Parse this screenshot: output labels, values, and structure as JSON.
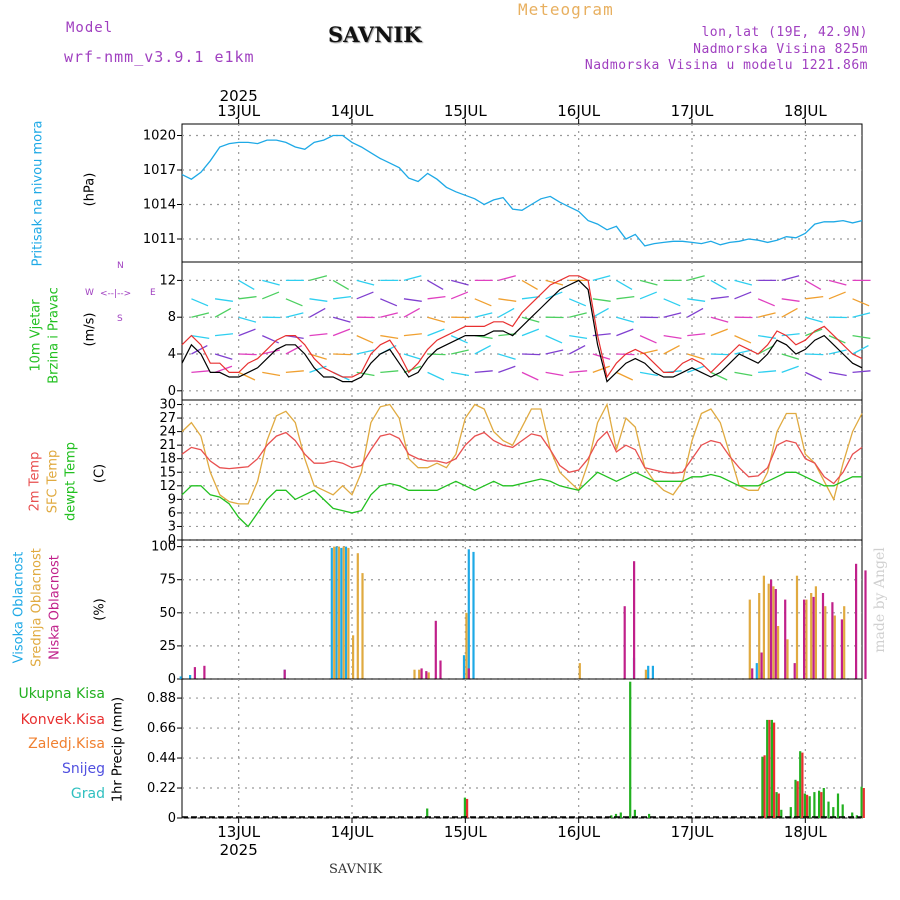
{
  "header": {
    "model_label": "Model",
    "model_name": "wrf-nmm_v3.9.1 e1km",
    "title": "SAVNIK",
    "product": "Meteogram",
    "lonlat": "lon,lat (19E, 42.9N)",
    "altitude": "Nadmorska Visina 825m",
    "model_altitude": "Nadmorska Visina u modelu 1221.86m",
    "footer": "SAVNIK",
    "watermark": "made by Angel"
  },
  "colors": {
    "pressure": "#1ea9e6",
    "wind_black": "#000000",
    "wind_red": "#e83030",
    "temp2m": "#e85050",
    "sfc": "#e0aa40",
    "dew": "#22c020",
    "cloud_high": "#1ea9e6",
    "cloud_mid": "#e0aa40",
    "cloud_low": "#c0208a",
    "rain_total": "#22b020",
    "rain_conv": "#e83030",
    "frozen": "#f08030",
    "snow": "#5050e0",
    "hail": "#30c0c0",
    "title_purple": "#a040c0",
    "title_orange": "#e8b060"
  },
  "chart_data": {
    "time_axis": {
      "year": "2025",
      "dates": [
        "13JUL",
        "14JUL",
        "15JUL",
        "16JUL",
        "17JUL",
        "18JUL"
      ],
      "start_hour": -12,
      "end_hour": 132
    },
    "panels": [
      {
        "id": "pressure",
        "type": "line",
        "labels": [
          "Pritisak na nivou mora"
        ],
        "unit": "(hPa)",
        "yticks": [
          "1011",
          "1014",
          "1017",
          "1020"
        ],
        "ylim": [
          1009,
          1021
        ],
        "x": [
          -12,
          -10,
          -8,
          -6,
          -4,
          -2,
          0,
          2,
          4,
          6,
          8,
          10,
          12,
          14,
          16,
          18,
          20,
          22,
          24,
          26,
          28,
          30,
          32,
          34,
          36,
          38,
          40,
          42,
          44,
          46,
          48,
          50,
          52,
          54,
          56,
          58,
          60,
          62,
          64,
          66,
          68,
          70,
          72,
          74,
          76,
          78,
          80,
          82,
          84,
          86,
          88,
          90,
          92,
          94,
          96,
          98,
          100,
          102,
          104,
          106,
          108,
          110,
          112,
          114,
          116,
          118,
          120,
          122,
          124,
          126,
          128,
          130,
          132
        ],
        "y": [
          1016.6,
          1016.2,
          1016.8,
          1017.8,
          1019.0,
          1019.3,
          1019.4,
          1019.4,
          1019.3,
          1019.6,
          1019.6,
          1019.4,
          1019.0,
          1018.8,
          1019.4,
          1019.6,
          1020.0,
          1020.0,
          1019.4,
          1019.0,
          1018.5,
          1018.0,
          1017.6,
          1017.2,
          1016.3,
          1016.0,
          1016.7,
          1016.2,
          1015.5,
          1015.1,
          1014.8,
          1014.5,
          1014.0,
          1014.4,
          1014.6,
          1013.6,
          1013.5,
          1014.0,
          1014.5,
          1014.7,
          1014.2,
          1013.8,
          1013.4,
          1012.6,
          1012.3,
          1011.8,
          1012.1,
          1011.0,
          1011.4,
          1010.4,
          1010.6,
          1010.7,
          1010.8,
          1010.8,
          1010.7,
          1010.6,
          1010.8,
          1010.5,
          1010.7,
          1010.8,
          1011.0,
          1010.9,
          1010.7,
          1010.9,
          1011.2,
          1011.1,
          1011.5,
          1012.3,
          1012.5,
          1012.5,
          1012.6,
          1012.4,
          1012.6
        ]
      },
      {
        "id": "wind",
        "type": "line",
        "labels": [
          "10m Vjetar",
          "Brzina i Pravac"
        ],
        "unit": "(m/s)",
        "yticks": [
          "0",
          "4",
          "8",
          "12"
        ],
        "ylim": [
          -1,
          14
        ],
        "compass": {
          "n": "N",
          "w": "W",
          "e": "E",
          "s": "S"
        },
        "x": [
          -12,
          -10,
          -8,
          -6,
          -4,
          -2,
          0,
          2,
          4,
          6,
          8,
          10,
          12,
          14,
          16,
          18,
          20,
          22,
          24,
          26,
          28,
          30,
          32,
          34,
          36,
          38,
          40,
          42,
          44,
          46,
          48,
          50,
          52,
          54,
          56,
          58,
          60,
          62,
          64,
          66,
          68,
          70,
          72,
          74,
          76,
          78,
          80,
          82,
          84,
          86,
          88,
          90,
          92,
          94,
          96,
          98,
          100,
          102,
          104,
          106,
          108,
          110,
          112,
          114,
          116,
          118,
          120,
          122,
          124,
          126,
          128,
          130,
          132
        ],
        "speed": [
          3,
          5,
          4,
          2,
          2,
          1.5,
          1.5,
          2,
          2.5,
          3.5,
          4.5,
          5,
          5,
          4,
          2.5,
          1.5,
          1.5,
          1,
          1,
          1.5,
          3,
          4,
          4.5,
          3,
          1.5,
          2,
          3.5,
          4.5,
          5,
          5.5,
          6,
          6,
          6,
          6.5,
          6.5,
          6,
          7,
          8,
          9,
          10,
          11,
          11.5,
          12,
          11,
          5,
          1,
          2,
          3,
          3.5,
          3,
          2,
          1.5,
          1.5,
          2,
          2.5,
          2,
          1.5,
          2,
          3,
          4,
          3.5,
          3,
          4,
          5.5,
          5,
          4,
          4.5,
          5.5,
          6,
          5,
          4,
          3,
          2.5
        ],
        "gust": [
          5,
          6,
          5,
          3,
          3,
          2,
          2,
          3,
          3.5,
          4.5,
          5.5,
          6,
          6,
          5,
          3.5,
          2.5,
          2,
          1.5,
          1.5,
          2,
          4,
          5,
          5.5,
          4,
          2,
          3,
          4.5,
          5.5,
          6,
          6.5,
          7,
          7,
          7,
          7.5,
          7.5,
          7,
          8.5,
          9.5,
          10.5,
          11.5,
          12,
          12.5,
          12.5,
          12,
          6,
          1.5,
          3,
          4,
          4.5,
          4,
          3,
          2,
          2,
          3,
          3.5,
          3,
          2,
          3,
          4,
          5,
          4.5,
          4,
          5,
          6.5,
          6,
          5,
          5.5,
          6.5,
          7,
          6,
          5,
          4,
          3.5
        ]
      },
      {
        "id": "temperature",
        "type": "line",
        "labels": [
          "2m Temp",
          "SFC Temp",
          "dewpt Temp"
        ],
        "unit": "(C)",
        "yticks": [
          "0",
          "3",
          "6",
          "9",
          "12",
          "15",
          "18",
          "21",
          "24",
          "27",
          "30"
        ],
        "ylim": [
          0,
          31
        ],
        "x": [
          -12,
          -10,
          -8,
          -6,
          -4,
          -2,
          0,
          2,
          4,
          6,
          8,
          10,
          12,
          14,
          16,
          18,
          20,
          22,
          24,
          26,
          28,
          30,
          32,
          34,
          36,
          38,
          40,
          42,
          44,
          46,
          48,
          50,
          52,
          54,
          56,
          58,
          60,
          62,
          64,
          66,
          68,
          70,
          72,
          74,
          76,
          78,
          80,
          82,
          84,
          86,
          88,
          90,
          92,
          94,
          96,
          98,
          100,
          102,
          104,
          106,
          108,
          110,
          112,
          114,
          116,
          118,
          120,
          122,
          124,
          126,
          128,
          130,
          132
        ],
        "t2m": [
          19,
          20.5,
          20,
          17.5,
          16,
          15.8,
          16,
          16.2,
          18,
          21,
          23,
          23.8,
          22,
          19,
          17,
          17,
          17.5,
          17,
          16,
          16.5,
          20,
          23,
          23.5,
          22.5,
          19,
          18,
          17.5,
          17.5,
          17,
          18,
          21,
          23,
          23.8,
          22,
          21,
          20.5,
          22,
          23.5,
          23,
          20,
          16.5,
          15,
          15.5,
          18,
          22,
          24,
          19.5,
          21,
          20,
          16,
          15.5,
          15,
          14.8,
          15,
          18,
          21,
          22,
          21.5,
          18.5,
          16,
          14,
          14.2,
          16,
          21,
          22,
          21.5,
          18,
          17,
          14,
          12.5,
          15,
          19,
          20.5
        ],
        "sfc": [
          24,
          26,
          23,
          15,
          10,
          8.5,
          8,
          8,
          13,
          22,
          27.5,
          28.5,
          26,
          18,
          12,
          11,
          10,
          12,
          10,
          15,
          26,
          29.5,
          30,
          27,
          18,
          16,
          16,
          17,
          16,
          19,
          27,
          30,
          29,
          24,
          22,
          21,
          25,
          29,
          29,
          20,
          15,
          13,
          11,
          17,
          26,
          30,
          20,
          27,
          25,
          16,
          13,
          11,
          10,
          13,
          22,
          28,
          29,
          26,
          19,
          12,
          11,
          11,
          15,
          24,
          28,
          28,
          19,
          17,
          13,
          9,
          17,
          24,
          28
        ],
        "dew": [
          10,
          12,
          12,
          10,
          9.5,
          8,
          5,
          3,
          6,
          9,
          11,
          11,
          9,
          10,
          11,
          9,
          7,
          6.5,
          6,
          6.5,
          10,
          12,
          12.5,
          12,
          11,
          11,
          11,
          11,
          12,
          13,
          12,
          11,
          12,
          13,
          12,
          12,
          12.5,
          13,
          13.5,
          13,
          12,
          11.5,
          11,
          13,
          15,
          14,
          13,
          14,
          15,
          14,
          13,
          13,
          13,
          13,
          14,
          14,
          14.5,
          14,
          13,
          12,
          12,
          12,
          13,
          14,
          15,
          15,
          14,
          13,
          12,
          12,
          13,
          14,
          14
        ]
      },
      {
        "id": "clouds",
        "type": "bar",
        "labels": [
          "Visoka Oblacnost",
          "Srednja Oblacnost",
          "Niska Oblacnost"
        ],
        "unit": "(%)",
        "yticks": [
          "0",
          "25",
          "50",
          "75",
          "100"
        ],
        "ylim": [
          0,
          105
        ],
        "high": [
          [
            -12,
            2
          ],
          [
            -10,
            3
          ],
          [
            10,
            7
          ],
          [
            20,
            99
          ],
          [
            21,
            100
          ],
          [
            22,
            99
          ],
          [
            23,
            100
          ],
          [
            48,
            18
          ],
          [
            49,
            98
          ],
          [
            50,
            96
          ],
          [
            84,
            16
          ],
          [
            87,
            10
          ],
          [
            88,
            10
          ],
          [
            110,
            12
          ],
          [
            111,
            5
          ]
        ],
        "mid": [
          [
            20,
            100
          ],
          [
            21,
            100
          ],
          [
            22,
            100
          ],
          [
            23,
            99
          ],
          [
            24,
            33
          ],
          [
            25,
            95
          ],
          [
            26,
            80
          ],
          [
            37,
            7
          ],
          [
            38,
            7
          ],
          [
            40,
            5
          ],
          [
            48,
            50
          ],
          [
            72,
            12
          ],
          [
            86,
            7
          ],
          [
            108,
            60
          ],
          [
            110,
            65
          ],
          [
            111,
            78
          ],
          [
            112,
            72
          ],
          [
            113,
            70
          ],
          [
            114,
            40
          ],
          [
            116,
            30
          ],
          [
            118,
            78
          ],
          [
            120,
            60
          ],
          [
            121,
            65
          ],
          [
            122,
            70
          ],
          [
            124,
            55
          ],
          [
            126,
            48
          ],
          [
            128,
            55
          ]
        ],
        "low": [
          [
            -10,
            9
          ],
          [
            -8,
            10
          ],
          [
            9,
            7
          ],
          [
            38,
            8
          ],
          [
            39,
            6
          ],
          [
            41,
            44
          ],
          [
            42,
            14
          ],
          [
            48,
            8
          ],
          [
            81,
            55
          ],
          [
            83,
            89
          ],
          [
            108,
            8
          ],
          [
            110,
            20
          ],
          [
            112,
            75
          ],
          [
            113,
            68
          ],
          [
            115,
            60
          ],
          [
            117,
            12
          ],
          [
            119,
            60
          ],
          [
            121,
            62
          ],
          [
            123,
            65
          ],
          [
            125,
            58
          ],
          [
            127,
            45
          ],
          [
            130,
            87
          ],
          [
            132,
            82
          ]
        ]
      },
      {
        "id": "precip",
        "type": "bar",
        "labels": [
          "Ukupna Kisa",
          "Konvek.Kisa",
          "Zaledj.Kisa",
          "Snijeg",
          "Grad"
        ],
        "unit": "1hr Precip (mm)",
        "yticks": [
          "0",
          "0.22",
          "0.44",
          "0.66",
          "0.88"
        ],
        "ylim": [
          0,
          1.02
        ],
        "total": [
          [
            40,
            0.07
          ],
          [
            48,
            0.15
          ],
          [
            79,
            0.02
          ],
          [
            80,
            0.03
          ],
          [
            81,
            0.04
          ],
          [
            83,
            1.0
          ],
          [
            84,
            0.06
          ],
          [
            87,
            0.03
          ],
          [
            111,
            0.45
          ],
          [
            112,
            0.72
          ],
          [
            113,
            0.72
          ],
          [
            114,
            0.19
          ],
          [
            115,
            0.06
          ],
          [
            117,
            0.08
          ],
          [
            118,
            0.28
          ],
          [
            119,
            0.49
          ],
          [
            120,
            0.18
          ],
          [
            121,
            0.16
          ],
          [
            122,
            0.19
          ],
          [
            123,
            0.2
          ],
          [
            124,
            0.22
          ],
          [
            125,
            0.12
          ],
          [
            126,
            0.08
          ],
          [
            127,
            0.18
          ],
          [
            128,
            0.1
          ],
          [
            130,
            0.04
          ],
          [
            131,
            0.02
          ],
          [
            132,
            0.23
          ]
        ],
        "conv": [
          [
            48,
            0.14
          ],
          [
            111,
            0.46
          ],
          [
            112,
            0.72
          ],
          [
            113,
            0.7
          ],
          [
            114,
            0.18
          ],
          [
            118,
            0.27
          ],
          [
            119,
            0.48
          ],
          [
            120,
            0.17
          ],
          [
            123,
            0.19
          ],
          [
            132,
            0.22
          ]
        ]
      }
    ]
  }
}
